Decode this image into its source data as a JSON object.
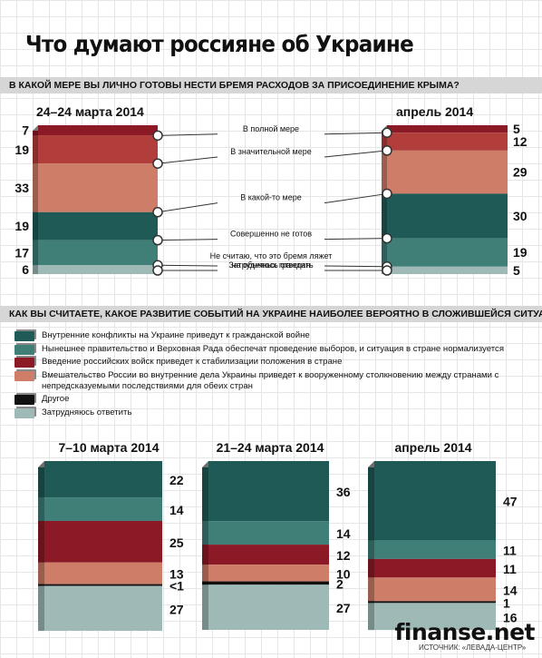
{
  "title": "Что думают россияне об Украине",
  "watermark": "finanse.net",
  "source": "ИСТОЧНИК: «ЛЕВАДА-ЦЕНТР»",
  "q1": {
    "text": "В КАКОЙ МЕРЕ ВЫ ЛИЧНО ГОТОВЫ НЕСТИ БРЕМЯ РАСХОДОВ ЗА ПРИСОЕДИНЕНИЕ КРЫМА?",
    "period_left": "24–24 марта 2014",
    "period_right": "апрель 2014"
  },
  "q2": {
    "text": "КАК ВЫ СЧИТАЕТЕ, КАКОЕ РАЗВИТИЕ СОБЫТИЙ НА УКРАИНЕ НАИБОЛЕЕ ВЕРОЯТНО В СЛОЖИВШЕЙСЯ СИТУАЦИИ?",
    "periods": [
      "7–10 марта 2014",
      "21–24 марта 2014",
      "апрель 2014"
    ],
    "legend": [
      {
        "text": "Внутренние конфликты на Украине приведут к гражданской войне",
        "color": "#1f5a57"
      },
      {
        "text": "Нынешнее правительство и Верховная Рада обеспечат проведение выборов, и ситуация в стране нормализуется",
        "color": "#3f7f78"
      },
      {
        "text": "Введение российских войск приведет к стабилизации положения в стране",
        "color": "#8c1a26"
      },
      {
        "text": "Вмешательство России во внутренние дела Украины приведет к вооруженному столкновению между странами с непредсказуемыми последствиями для обеих стран",
        "color": "#cd7d68"
      },
      {
        "text": "Другое",
        "color": "#111111"
      },
      {
        "text": "Затрудняюсь ответить",
        "color": "#9fbab6"
      }
    ]
  },
  "chart_data": [
    {
      "type": "bar",
      "stacked": true,
      "orientation": "vertical",
      "categories": [
        "24–24 марта 2014",
        "апрель 2014"
      ],
      "series": [
        {
          "name": "В полной мере",
          "values": [
            7,
            5
          ],
          "color": "#8c1a26"
        },
        {
          "name": "В значительной мере",
          "values": [
            19,
            12
          ],
          "color": "#b23e3b"
        },
        {
          "name": "В какой-то мере",
          "values": [
            33,
            29
          ],
          "color": "#cd7d68"
        },
        {
          "name": "Совершенно не готов",
          "values": [
            19,
            30
          ],
          "color": "#1f5a57"
        },
        {
          "name": "Не считаю, что это бремя ляжет на обычных граждан",
          "values": [
            17,
            19
          ],
          "color": "#3f7f78"
        },
        {
          "name": "Затрудняюсь ответить",
          "values": [
            6,
            5
          ],
          "color": "#9fbab6"
        }
      ]
    },
    {
      "type": "bar",
      "stacked": true,
      "orientation": "vertical",
      "categories": [
        "7–10 марта 2014",
        "21–24 марта 2014",
        "апрель 2014"
      ],
      "series": [
        {
          "name": "Внутренние конфликты на Украине приведут к гражданской войне",
          "values": [
            22,
            36,
            47
          ],
          "labels": [
            "22",
            "36",
            "47"
          ],
          "color": "#1f5a57"
        },
        {
          "name": "Нынешнее правительство и Верховная Рада обеспечат проведение выборов, и ситуация в стране нормализуется",
          "values": [
            14,
            14,
            11
          ],
          "labels": [
            "14",
            "14",
            "11"
          ],
          "color": "#3f7f78"
        },
        {
          "name": "Введение российских войск приведет к стабилизации положения в стране",
          "values": [
            25,
            12,
            11
          ],
          "labels": [
            "25",
            "12",
            "11"
          ],
          "color": "#8c1a26"
        },
        {
          "name": "Вмешательство России во внутренние дела Украины приведет к вооруженному столкновению между странами с непредсказуемыми последствиями для обеих стран",
          "values": [
            13,
            10,
            14
          ],
          "labels": [
            "13",
            "10",
            "14"
          ],
          "color": "#cd7d68"
        },
        {
          "name": "Другое",
          "values": [
            0.5,
            2,
            1
          ],
          "labels": [
            "<1",
            "2",
            "1"
          ],
          "color": "#111111"
        },
        {
          "name": "Затрудняюсь ответить",
          "values": [
            27,
            27,
            16
          ],
          "labels": [
            "27",
            "27",
            "16"
          ],
          "color": "#9fbab6"
        }
      ]
    }
  ]
}
